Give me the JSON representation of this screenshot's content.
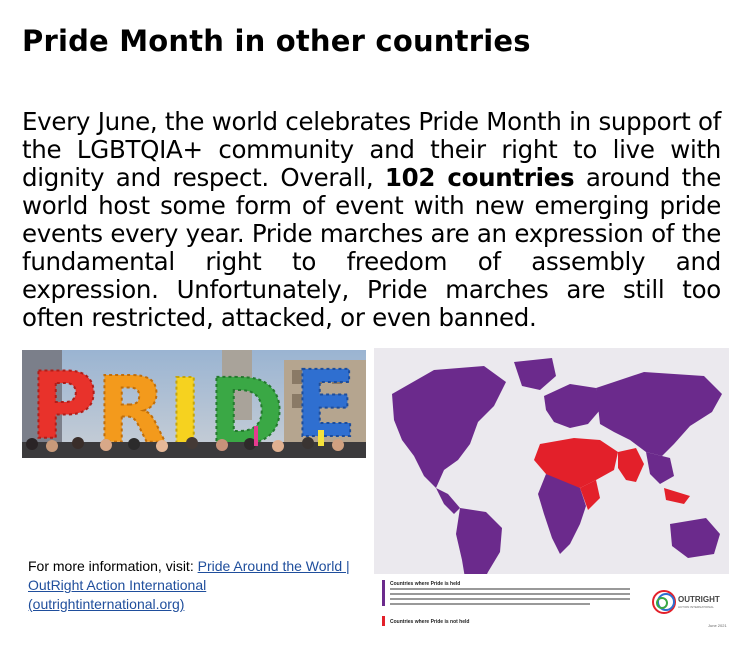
{
  "title": "Pride Month in other countries",
  "body": {
    "part1": "Every June, the world celebrates Pride Month in support of the LGBTQIA+ community and their right to live with dignity and respect. Overall, ",
    "bold": "102 countries",
    "part2": " around the world host some form of event with new emerging pride events every year. Pride marches are an expression of the fundamental right to freedom of assembly and expression. Unfortunately, Pride marches are still too often restricted, attacked, or even banned."
  },
  "photo": {
    "letters": [
      "P",
      "R",
      "I",
      "D",
      "E"
    ],
    "colors": [
      "#e8322b",
      "#f39a1c",
      "#f6d21f",
      "#3aa845",
      "#2f6fd0"
    ]
  },
  "map": {
    "legend_held": "Countries where Pride is held",
    "legend_not_held": "Countries where Pride is not held",
    "logo_text": "OUTRIGHT",
    "logo_sub": "ACTION INTERNATIONAL",
    "date": "June 2021",
    "held_color": "#6b2a8c",
    "not_held_color": "#e3202a"
  },
  "info": {
    "prefix": "For more information, visit: ",
    "link_text": "Pride Around the World | OutRight Action International (outrightinternational.org)"
  }
}
